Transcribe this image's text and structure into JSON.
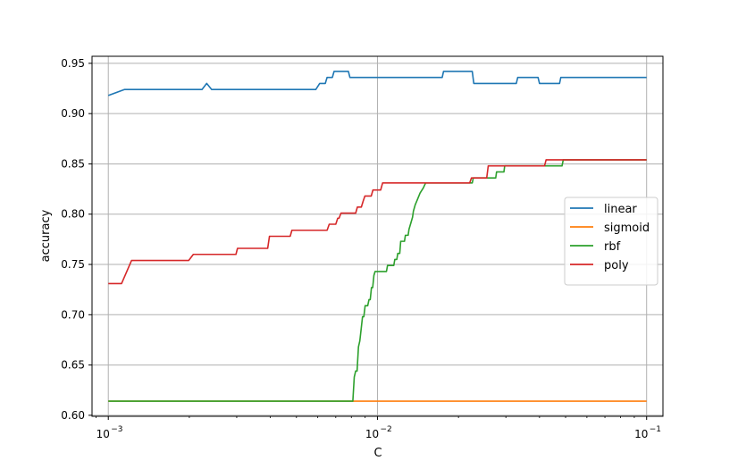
{
  "chart_data": {
    "type": "line",
    "title": "",
    "xlabel": "C",
    "ylabel": "accuracy",
    "xscale": "log",
    "xlim": [
      0.00087,
      0.115
    ],
    "ylim": [
      0.599,
      0.957
    ],
    "grid": true,
    "legend_position": "center-right",
    "x_ticks": [
      {
        "value": 0.001,
        "base": "10",
        "exp": "−3"
      },
      {
        "value": 0.01,
        "base": "10",
        "exp": "−2"
      },
      {
        "value": 0.1,
        "base": "10",
        "exp": "−1"
      }
    ],
    "y_ticks": [
      "0.60",
      "0.65",
      "0.70",
      "0.75",
      "0.80",
      "0.85",
      "0.90",
      "0.95"
    ],
    "series": [
      {
        "name": "linear",
        "color": "#1f77b4",
        "points": [
          [
            0.001,
            0.918
          ],
          [
            0.00115,
            0.924
          ],
          [
            0.00223,
            0.924
          ],
          [
            0.00232,
            0.93
          ],
          [
            0.00242,
            0.924
          ],
          [
            0.0059,
            0.924
          ],
          [
            0.0061,
            0.93
          ],
          [
            0.0064,
            0.93
          ],
          [
            0.0065,
            0.936
          ],
          [
            0.0068,
            0.936
          ],
          [
            0.0069,
            0.942
          ],
          [
            0.0078,
            0.942
          ],
          [
            0.0079,
            0.936
          ],
          [
            0.0174,
            0.936
          ],
          [
            0.0176,
            0.942
          ],
          [
            0.0225,
            0.942
          ],
          [
            0.0228,
            0.93
          ],
          [
            0.0328,
            0.93
          ],
          [
            0.0332,
            0.936
          ],
          [
            0.0395,
            0.936
          ],
          [
            0.04,
            0.93
          ],
          [
            0.0475,
            0.93
          ],
          [
            0.048,
            0.936
          ],
          [
            0.1,
            0.936
          ]
        ]
      },
      {
        "name": "sigmoid",
        "color": "#ff7f0e",
        "points": [
          [
            0.001,
            0.614
          ],
          [
            0.1,
            0.614
          ]
        ]
      },
      {
        "name": "rbf",
        "color": "#2ca02c",
        "points": [
          [
            0.001,
            0.614
          ],
          [
            0.0081,
            0.614
          ],
          [
            0.0082,
            0.638
          ],
          [
            0.0083,
            0.644
          ],
          [
            0.0084,
            0.644
          ],
          [
            0.0085,
            0.668
          ],
          [
            0.0086,
            0.674
          ],
          [
            0.0087,
            0.686
          ],
          [
            0.0088,
            0.698
          ],
          [
            0.0089,
            0.698
          ],
          [
            0.009,
            0.709
          ],
          [
            0.0092,
            0.709
          ],
          [
            0.0093,
            0.715
          ],
          [
            0.0094,
            0.715
          ],
          [
            0.0095,
            0.727
          ],
          [
            0.0096,
            0.727
          ],
          [
            0.0097,
            0.739
          ],
          [
            0.0098,
            0.743
          ],
          [
            0.0108,
            0.743
          ],
          [
            0.0109,
            0.749
          ],
          [
            0.0115,
            0.749
          ],
          [
            0.0116,
            0.755
          ],
          [
            0.0118,
            0.755
          ],
          [
            0.0119,
            0.761
          ],
          [
            0.0121,
            0.761
          ],
          [
            0.0122,
            0.773
          ],
          [
            0.0126,
            0.773
          ],
          [
            0.0127,
            0.779
          ],
          [
            0.013,
            0.779
          ],
          [
            0.0131,
            0.785
          ],
          [
            0.0133,
            0.791
          ],
          [
            0.0135,
            0.797
          ],
          [
            0.0136,
            0.803
          ],
          [
            0.0138,
            0.809
          ],
          [
            0.0141,
            0.815
          ],
          [
            0.0144,
            0.821
          ],
          [
            0.0148,
            0.826
          ],
          [
            0.0151,
            0.831
          ],
          [
            0.0225,
            0.831
          ],
          [
            0.0227,
            0.836
          ],
          [
            0.0275,
            0.836
          ],
          [
            0.0277,
            0.842
          ],
          [
            0.0295,
            0.842
          ],
          [
            0.0297,
            0.848
          ],
          [
            0.0485,
            0.848
          ],
          [
            0.049,
            0.854
          ],
          [
            0.1,
            0.854
          ]
        ]
      },
      {
        "name": "poly",
        "color": "#d62728",
        "points": [
          [
            0.001,
            0.731
          ],
          [
            0.00112,
            0.731
          ],
          [
            0.00122,
            0.754
          ],
          [
            0.00199,
            0.754
          ],
          [
            0.00207,
            0.76
          ],
          [
            0.00298,
            0.76
          ],
          [
            0.00302,
            0.766
          ],
          [
            0.00391,
            0.766
          ],
          [
            0.00397,
            0.778
          ],
          [
            0.00474,
            0.778
          ],
          [
            0.00481,
            0.784
          ],
          [
            0.0065,
            0.784
          ],
          [
            0.00662,
            0.79
          ],
          [
            0.007,
            0.79
          ],
          [
            0.00712,
            0.796
          ],
          [
            0.0072,
            0.796
          ],
          [
            0.00732,
            0.801
          ],
          [
            0.0083,
            0.801
          ],
          [
            0.00842,
            0.807
          ],
          [
            0.00871,
            0.807
          ],
          [
            0.00885,
            0.813
          ],
          [
            0.00898,
            0.818
          ],
          [
            0.00948,
            0.818
          ],
          [
            0.00962,
            0.824
          ],
          [
            0.01028,
            0.824
          ],
          [
            0.01045,
            0.831
          ],
          [
            0.022,
            0.831
          ],
          [
            0.02235,
            0.836
          ],
          [
            0.02546,
            0.836
          ],
          [
            0.0258,
            0.848
          ],
          [
            0.04176,
            0.848
          ],
          [
            0.04232,
            0.854
          ],
          [
            0.1,
            0.854
          ]
        ]
      }
    ]
  }
}
